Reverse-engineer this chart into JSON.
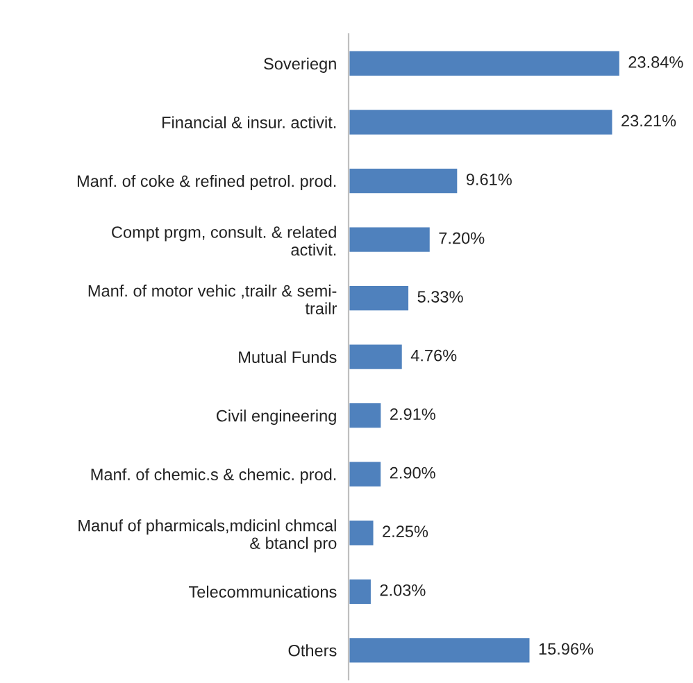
{
  "chart_data": {
    "type": "bar",
    "orientation": "horizontal",
    "categories": [
      "Soveriegn",
      "Financial & insur. activit.",
      "Manf. of coke & refined petrol. prod.",
      "Compt prgm, consult. & related\nactivit.",
      "Manf. of motor vehic ,trailr & semi-\ntrailr",
      "Mutual Funds",
      "Civil engineering",
      "Manf. of chemic.s & chemic. prod.",
      "Manuf of pharmicals,mdicinl chmcal\n& btancl pro",
      "Telecommunications",
      "Others"
    ],
    "values": [
      23.84,
      23.21,
      9.61,
      7.2,
      5.33,
      4.76,
      2.91,
      2.9,
      2.25,
      2.03,
      15.96
    ],
    "value_labels": [
      "23.84%",
      "23.21%",
      "9.61%",
      "7.20%",
      "5.33%",
      "4.76%",
      "2.91%",
      "2.90%",
      "2.25%",
      "2.03%",
      "15.96%"
    ],
    "color": "#4f81bd",
    "grid": false,
    "legend": false
  }
}
